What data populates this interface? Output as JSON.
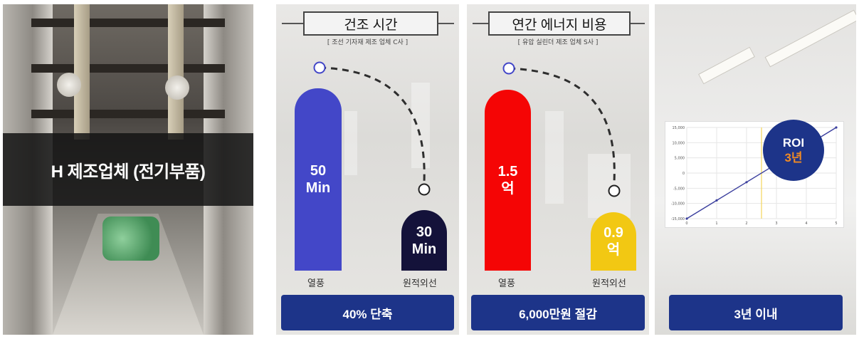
{
  "panel_company": {
    "label": "H 제조업체 (전기부품)"
  },
  "panel_drying": {
    "title": "건조 시간",
    "subtitle": "[ 조선 기자재 제조 업체 C사 ]",
    "bars": [
      {
        "value_text": "50\nMin",
        "category": "열풍",
        "color": "#4347c8",
        "value": 50
      },
      {
        "value_text": "30\nMin",
        "category": "원적외선",
        "color": "#14123a",
        "value": 30
      }
    ],
    "footer": "40% 단축"
  },
  "panel_energy": {
    "title": "연간 에너지 비용",
    "subtitle": "[ 유압 실린더 제조 업체 S사 ]",
    "bars": [
      {
        "value_text": "1.5\n억",
        "category": "열풍",
        "color": "#f50505",
        "value": 1.5
      },
      {
        "value_text": "0.9\n억",
        "category": "원적외선",
        "color": "#f2c813",
        "value": 0.9
      }
    ],
    "footer": "6,000만원 절감"
  },
  "panel_roi": {
    "badge_line1": "ROI",
    "badge_line2": "3년",
    "badge_line1_color": "#ffffff",
    "badge_line2_color": "#f08a24",
    "footer": "3년 이내",
    "chart_data": {
      "type": "line",
      "x": [
        0,
        1,
        2,
        3,
        4,
        5
      ],
      "y": [
        -15000,
        -9000,
        -3000,
        3000,
        9000,
        15000
      ],
      "ylim": [
        -15000,
        15000
      ],
      "yticks": [
        "15,000",
        "10,000",
        "5,000",
        "0",
        "-5,000",
        "-10,000",
        "-15,000"
      ],
      "xticks": [
        "0",
        "1",
        "2",
        "3",
        "4",
        "5"
      ],
      "line_color": "#3b3f9e",
      "marker_line_color": "#f2d65a",
      "grid": true
    }
  }
}
